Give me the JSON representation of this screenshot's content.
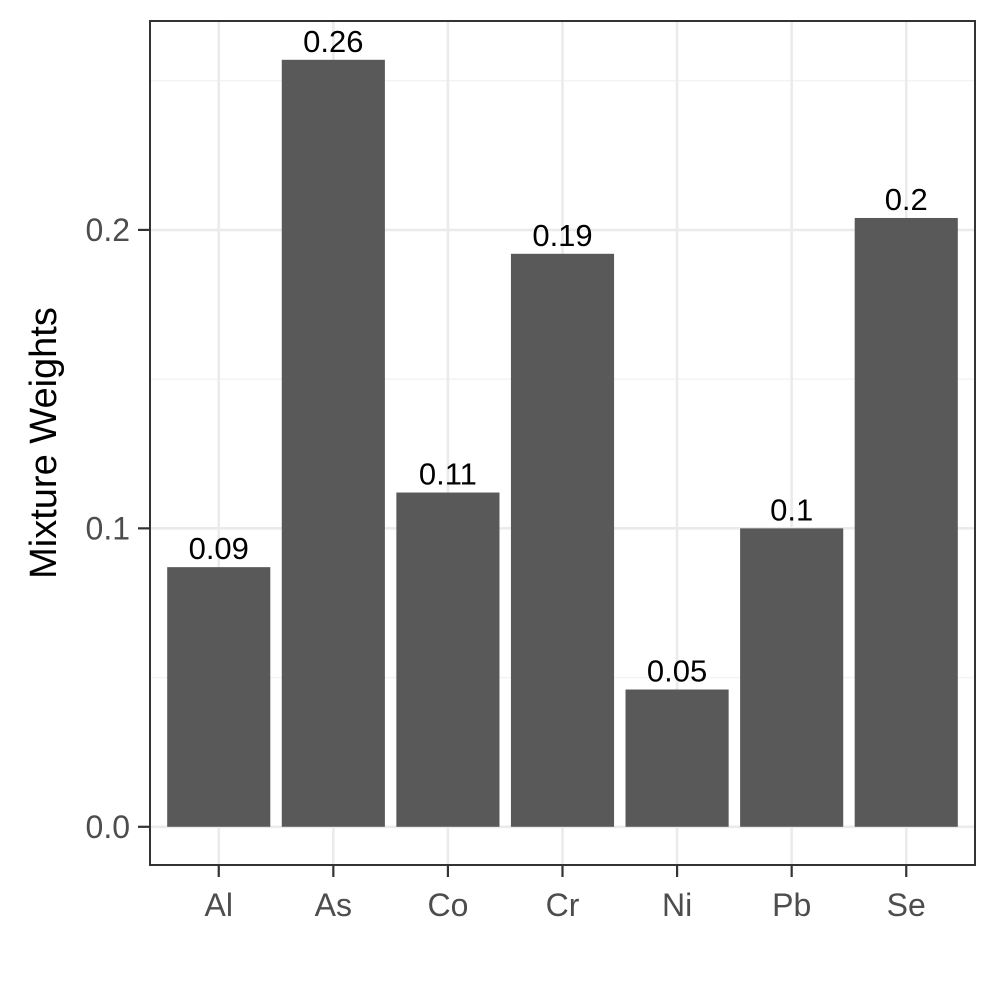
{
  "chart_data": {
    "type": "bar",
    "title": "",
    "xlabel": "",
    "ylabel": "Mixture Weights",
    "categories": [
      "Al",
      "As",
      "Co",
      "Cr",
      "Ni",
      "Pb",
      "Se"
    ],
    "values": [
      0.087,
      0.257,
      0.112,
      0.192,
      0.046,
      0.1,
      0.204
    ],
    "data_labels": [
      "0.09",
      "0.26",
      "0.11",
      "0.19",
      "0.05",
      "0.1",
      "0.2"
    ],
    "y_ticks": [
      0.0,
      0.1,
      0.2
    ],
    "y_tick_labels": [
      "0.0",
      "0.1",
      "0.2"
    ],
    "ylim": [
      -0.0128,
      0.27
    ],
    "grid": true,
    "legend": "none",
    "colors": {
      "bar": "#595959",
      "grid": "#ebebeb",
      "border": "#333333"
    }
  }
}
